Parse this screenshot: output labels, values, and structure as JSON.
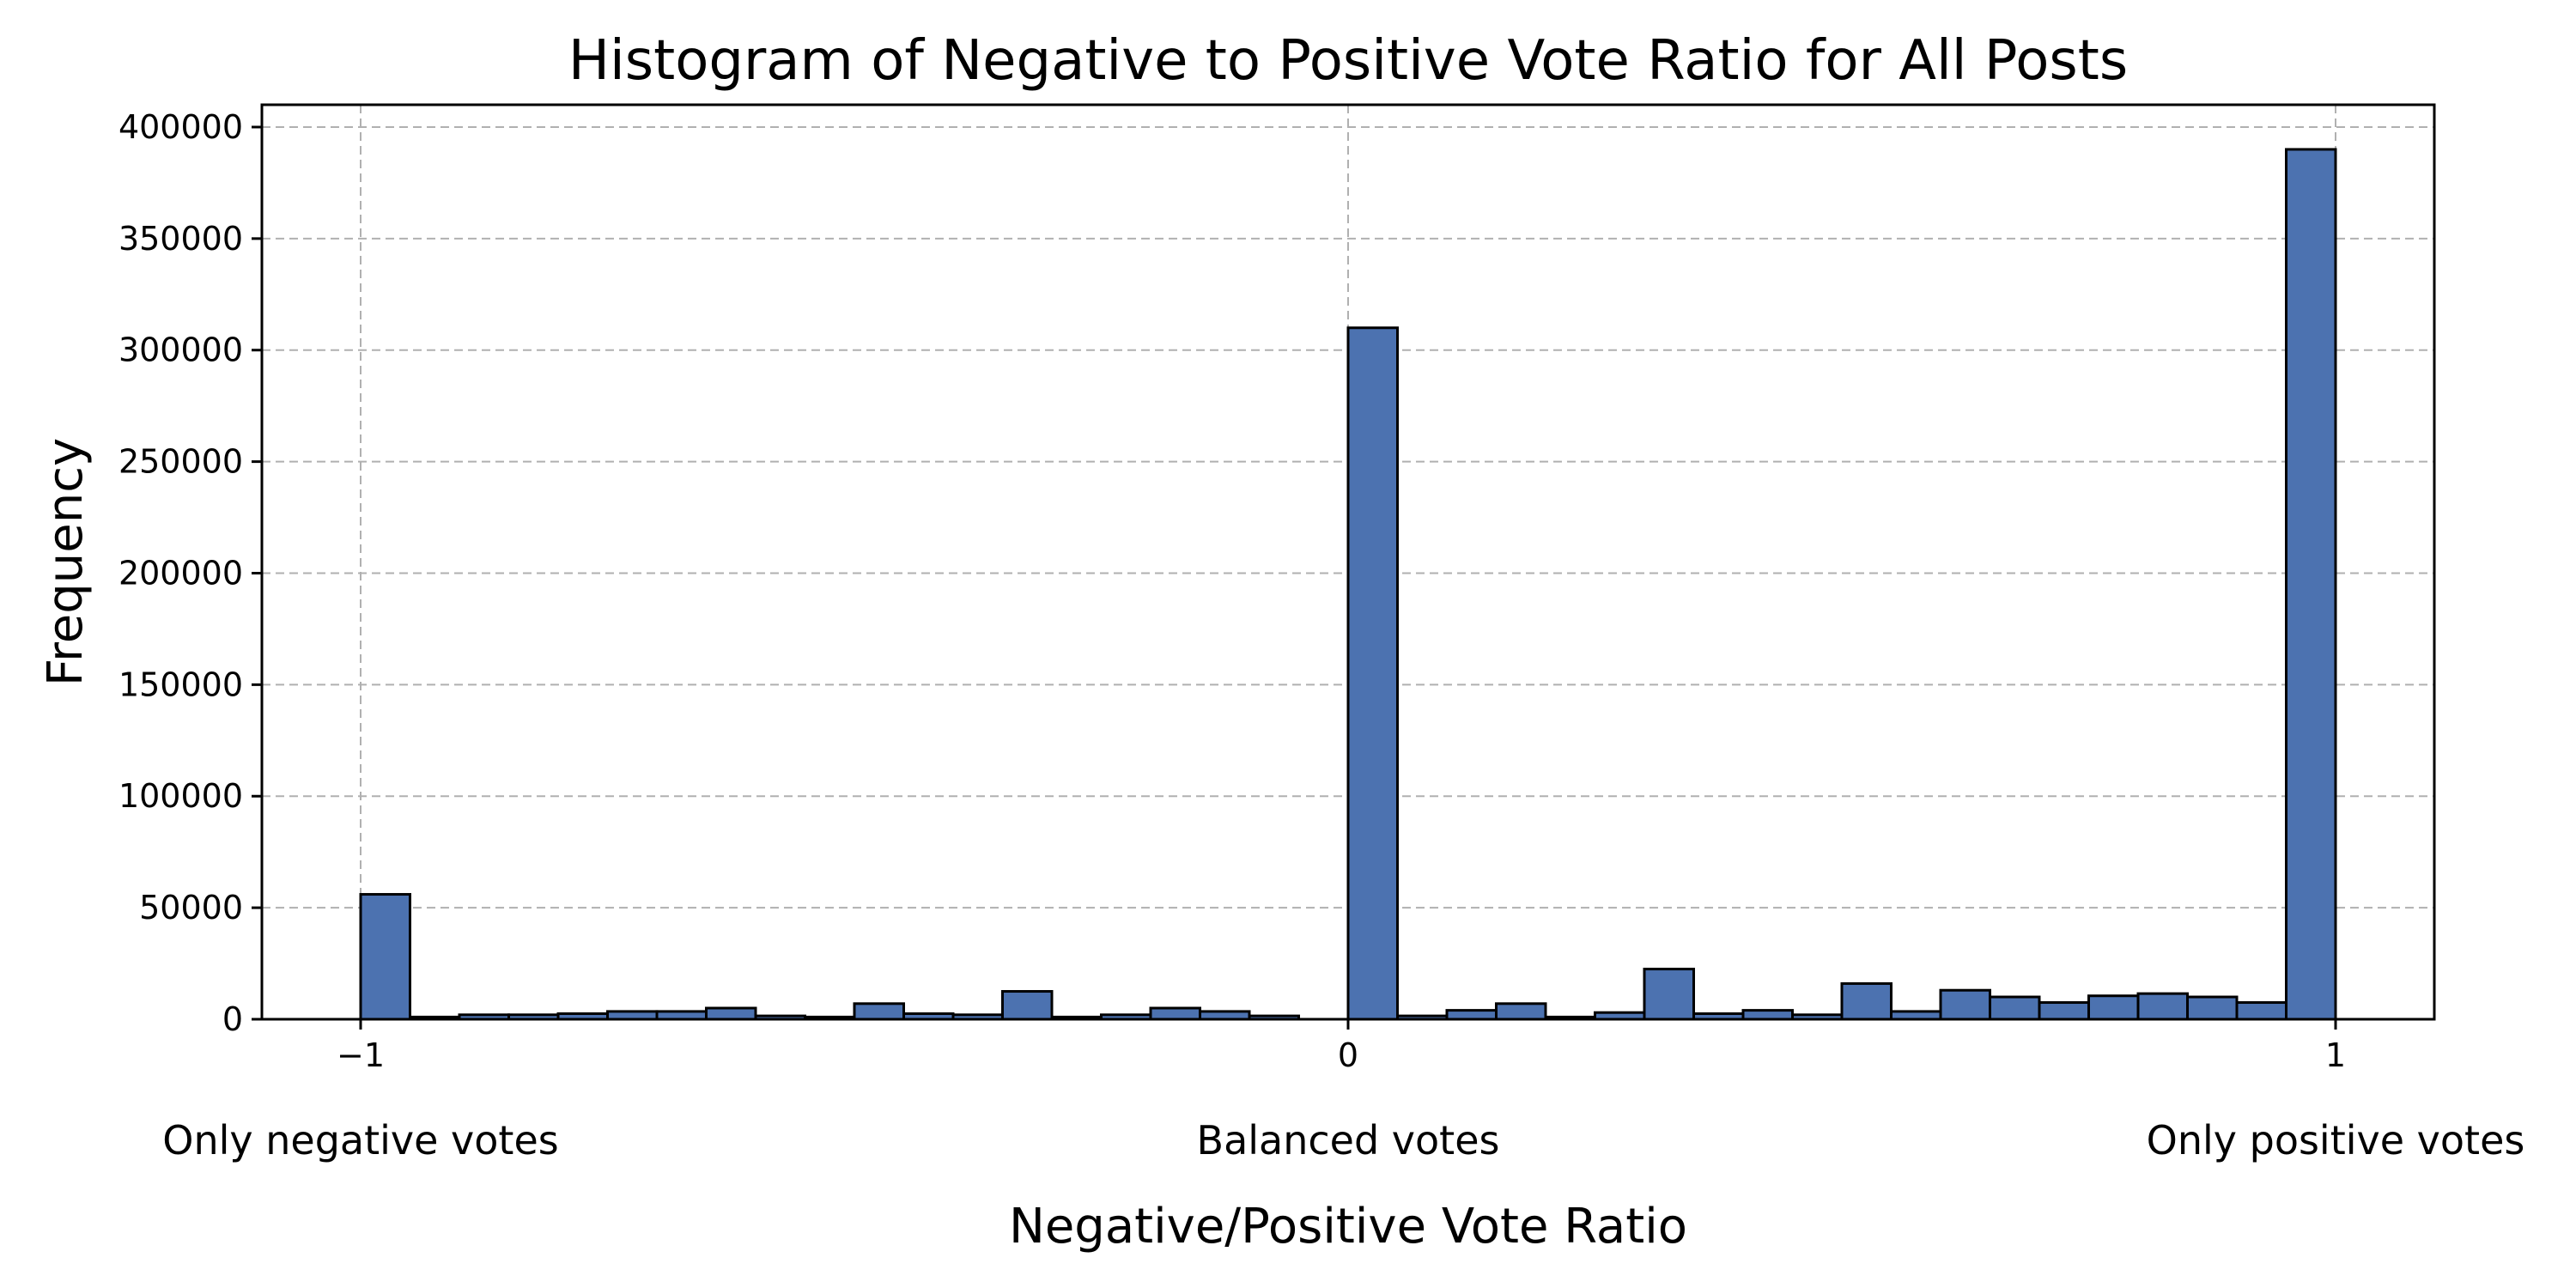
{
  "chart_data": {
    "type": "bar",
    "title": "Histogram of Negative to Positive Vote Ratio for All Posts",
    "xlabel": "Negative/Positive Vote Ratio",
    "ylabel": "Frequency",
    "xlim": [
      -1.1,
      1.1
    ],
    "ylim": [
      0,
      410000
    ],
    "grid": true,
    "bar_color": "#4c72b0",
    "bin_edges_start": -1.0,
    "bin_width": 0.05,
    "values": [
      56000,
      1000,
      2000,
      2000,
      2500,
      3500,
      3500,
      5000,
      1500,
      1000,
      7000,
      2500,
      2000,
      12500,
      1000,
      2000,
      5000,
      3500,
      1500,
      0,
      310000,
      1500,
      4000,
      7000,
      1000,
      3000,
      22500,
      2500,
      4000,
      2000,
      16000,
      3500,
      13000,
      10000,
      7500,
      10500,
      11500,
      10000,
      7500,
      390000
    ],
    "x_ticks": [
      {
        "value": -1,
        "label": "−1"
      },
      {
        "value": 0,
        "label": "0"
      },
      {
        "value": 1,
        "label": "1"
      }
    ],
    "y_ticks": [
      {
        "value": 0,
        "label": "0"
      },
      {
        "value": 50000,
        "label": "50000"
      },
      {
        "value": 100000,
        "label": "100000"
      },
      {
        "value": 150000,
        "label": "150000"
      },
      {
        "value": 200000,
        "label": "200000"
      },
      {
        "value": 250000,
        "label": "250000"
      },
      {
        "value": 300000,
        "label": "300000"
      },
      {
        "value": 350000,
        "label": "350000"
      },
      {
        "value": 400000,
        "label": "400000"
      }
    ],
    "annotations": [
      {
        "value": -1,
        "text": "Only negative votes"
      },
      {
        "value": 0,
        "text": "Balanced votes"
      },
      {
        "value": 1,
        "text": "Only positive votes"
      }
    ]
  }
}
